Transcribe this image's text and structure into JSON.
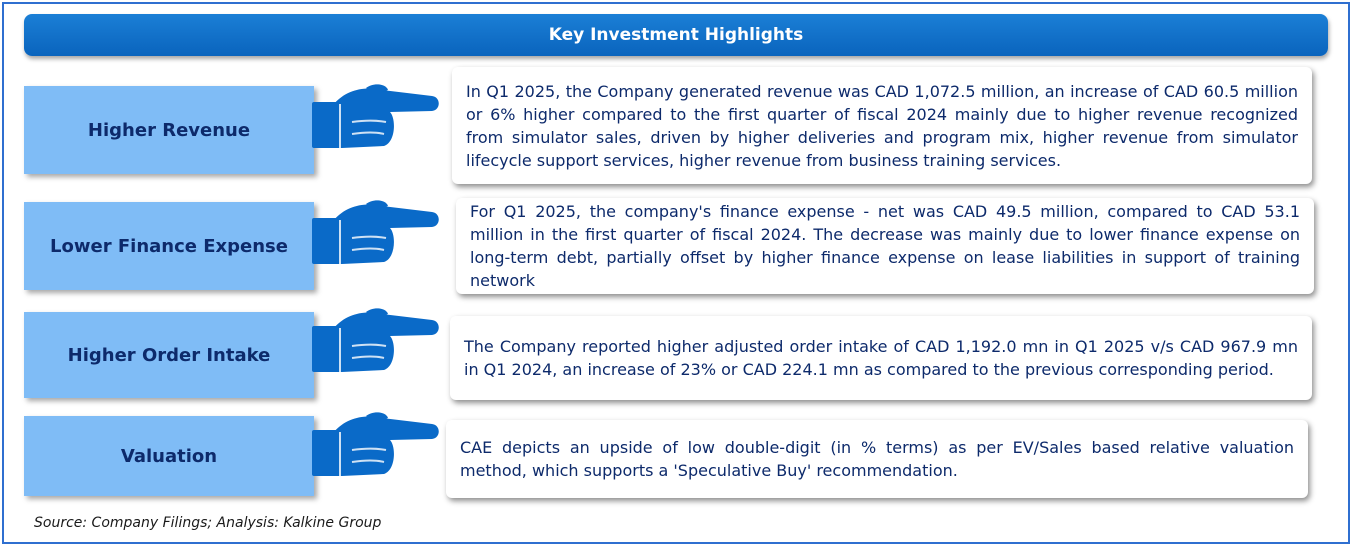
{
  "title": "Key Investment Highlights",
  "highlights": [
    {
      "label": "Higher Revenue",
      "text": "In Q1 2025, the Company generated revenue  was CAD 1,072.5 million, an increase of CAD 60.5 million or 6% higher compared to the first quarter of fiscal 2024 mainly due to higher revenue recognized from simulator sales, driven by higher deliveries and program mix, higher revenue from simulator lifecycle support services, higher revenue from business training services."
    },
    {
      "label": "Lower Finance Expense",
      "text": "For Q1 2025, the company's  finance expense - net was CAD 49.5 million, compared to CAD 53.1 million in the first quarter of fiscal 2024. The decrease was mainly due to lower finance expense on long-term debt, partially offset by higher finance expense on lease liabilities in support of training network"
    },
    {
      "label": "Higher Order Intake",
      "text": "The Company reported higher adjusted order intake of CAD 1,192.0 mn in Q1 2025 v/s CAD 967.9 mn in Q1 2024, an increase of 23% or CAD 224.1 mn as compared to the previous corresponding period."
    },
    {
      "label": "Valuation",
      "text": "CAE  depicts an upside of low double-digit (in % terms) as per EV/Sales based relative valuation method, which supports a 'Speculative Buy' recommendation."
    }
  ],
  "source": "Source: Company Filings; Analysis: Kalkine Group",
  "colors": {
    "header": "#0a64bd",
    "label_box": "#7fbcf6",
    "hand": "#0a6ac8",
    "text": "#0d2a6b",
    "frame_border": "#2f6fd0"
  },
  "icons": [
    "pointing-hand-icon"
  ]
}
